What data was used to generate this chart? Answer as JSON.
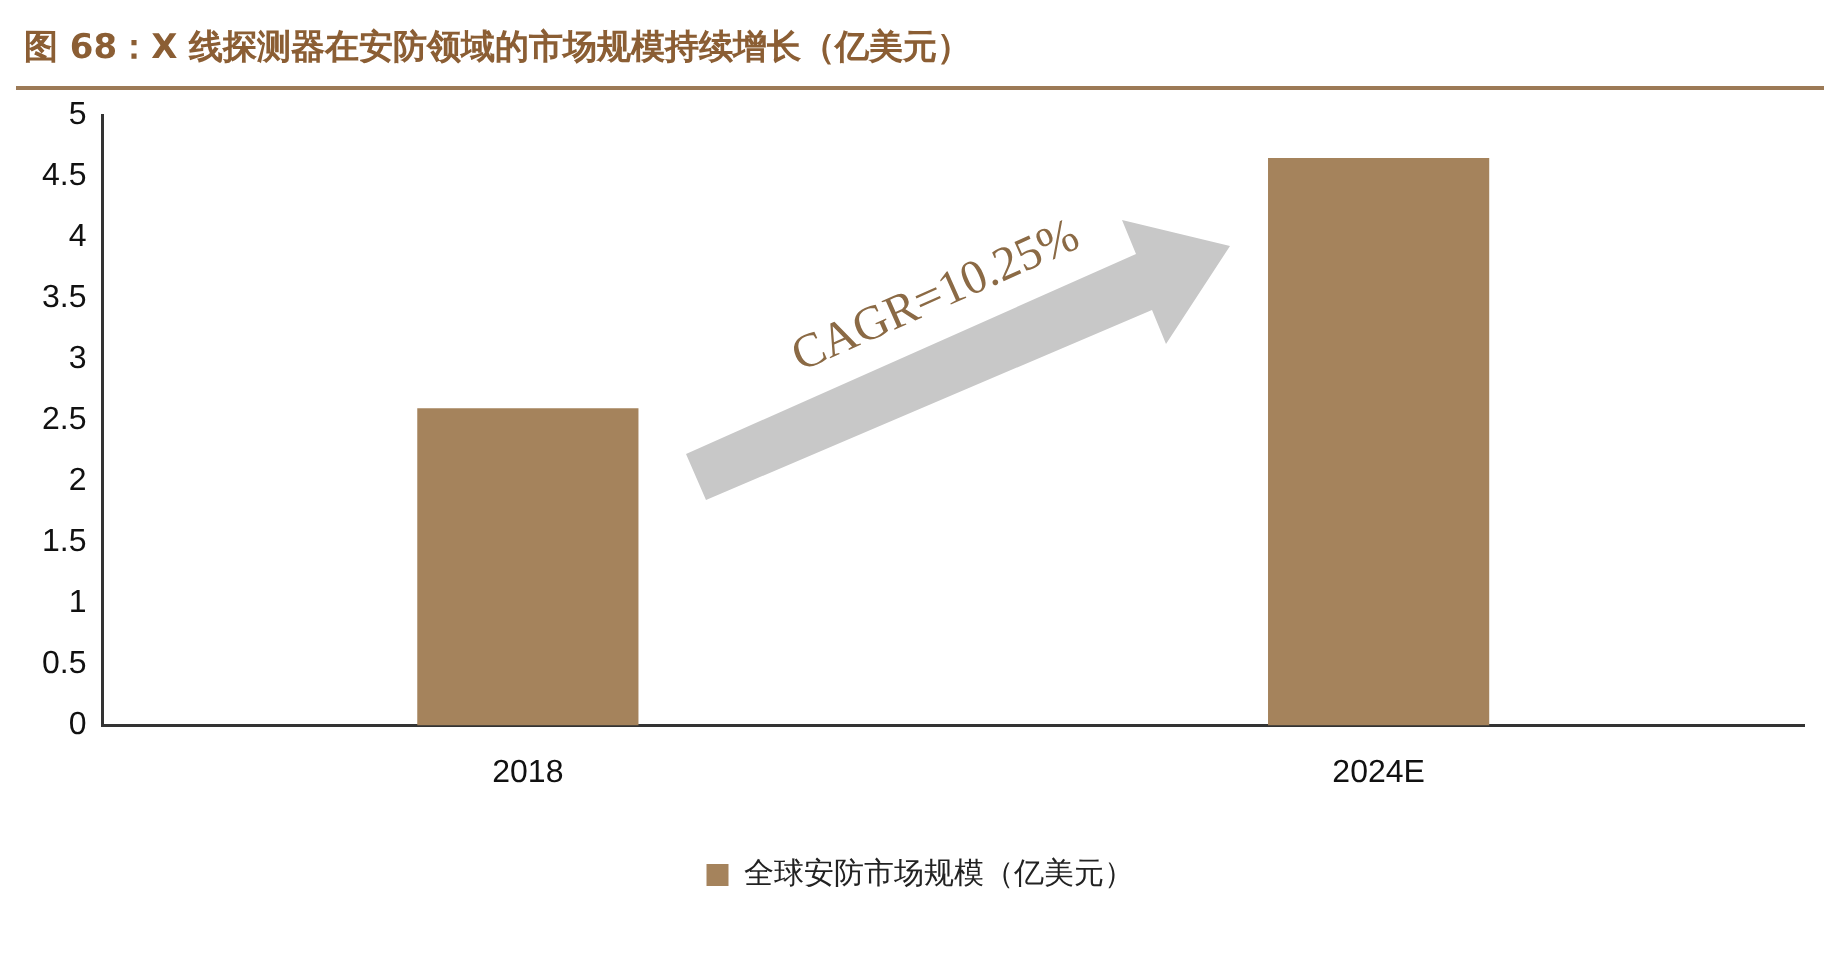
{
  "chart_data": {
    "type": "bar",
    "title": "图 68：X 线探测器在安防领域的市场规模持续增长（亿美元）",
    "categories": [
      "2018",
      "2024E"
    ],
    "series": [
      {
        "name": "全球安防市场规模（亿美元）",
        "color": "#a5835c",
        "values": [
          2.6,
          4.65
        ]
      }
    ],
    "ylim": [
      0,
      5
    ],
    "yticks": [
      0,
      0.5,
      1,
      1.5,
      2,
      2.5,
      3,
      3.5,
      4,
      4.5,
      5
    ],
    "grid": false,
    "legend": "bottom",
    "annotations": [
      "CAGR=10.25%"
    ]
  }
}
